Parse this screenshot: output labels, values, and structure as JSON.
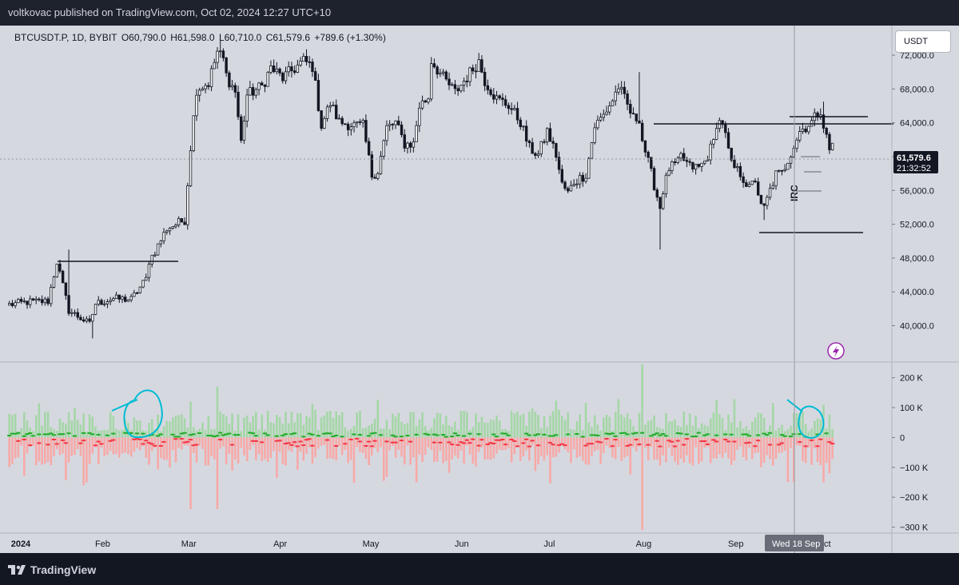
{
  "header": {
    "publisher_line": "voltkovac published on TradingView.com, Oct 02, 2024 12:27 UTC+10"
  },
  "legend": {
    "symbol": "BTCUSDT.P, 1D, BYBIT",
    "open": "O60,790.0",
    "high": "H61,598.0",
    "low": "L60,710.0",
    "close": "C61,579.6",
    "change": "+789.6 (+1.30%)"
  },
  "currency_button": "USDT",
  "price_badge": {
    "price": "61,579.6",
    "countdown": "21:32:52"
  },
  "crosshair_label": "Wed 18 Sep",
  "annotation_text": "IRC",
  "footer": {
    "brand": "TradingView"
  },
  "colors": {
    "up": "#089981",
    "down": "#f23645",
    "candle": "#131722",
    "circle": "#00bcd4",
    "bg": "#d6d8e0",
    "lightning": "#9c27b0"
  },
  "chart_data": [
    {
      "type": "candlestick",
      "title": "BTCUSDT.P, 1D, BYBIT",
      "price_axis": {
        "ticks": [
          "72,000.0",
          "68,000.0",
          "64,000.0",
          "60,000.0",
          "56,000.0",
          "52,000.0",
          "48,000.0",
          "44,000.0",
          "40,000.0"
        ],
        "tick_values": [
          72000,
          68000,
          64000,
          60000,
          56000,
          52000,
          48000,
          44000,
          40000
        ],
        "ylim": [
          35700,
          75500
        ]
      },
      "time_axis": {
        "ticks": [
          "2024",
          "Feb",
          "Mar",
          "Apr",
          "May",
          "Jun",
          "Jul",
          "Aug",
          "Sep",
          "Oct"
        ],
        "tick_days": [
          0,
          31,
          60,
          91,
          121,
          152,
          182,
          213,
          244,
          274
        ],
        "xlim": [
          -1,
          297
        ]
      },
      "close_path": [
        [
          0,
          42500
        ],
        [
          6,
          42800
        ],
        [
          13,
          42900
        ],
        [
          16,
          47600
        ],
        [
          20,
          41800
        ],
        [
          27,
          40200
        ],
        [
          29,
          42600
        ],
        [
          35,
          43200
        ],
        [
          41,
          43100
        ],
        [
          46,
          45500
        ],
        [
          47,
          47700
        ],
        [
          49,
          48800
        ],
        [
          53,
          51500
        ],
        [
          56,
          52000
        ],
        [
          59,
          52500
        ],
        [
          61,
          61200
        ],
        [
          63,
          68000
        ],
        [
          67,
          68700
        ],
        [
          70,
          72400
        ],
        [
          72,
          71500
        ],
        [
          73,
          69600
        ],
        [
          76,
          67700
        ],
        [
          78,
          61700
        ],
        [
          80,
          67300
        ],
        [
          85,
          68300
        ],
        [
          88,
          70500
        ],
        [
          92,
          69300
        ],
        [
          99,
          71300
        ],
        [
          102,
          70700
        ],
        [
          105,
          63700
        ],
        [
          108,
          66300
        ],
        [
          111,
          64100
        ],
        [
          116,
          63700
        ],
        [
          119,
          63600
        ],
        [
          122,
          57800
        ],
        [
          124,
          58300
        ],
        [
          127,
          63400
        ],
        [
          130,
          64000
        ],
        [
          133,
          61500
        ],
        [
          136,
          61500
        ],
        [
          138,
          66000
        ],
        [
          141,
          67000
        ],
        [
          142,
          71400
        ],
        [
          146,
          69300
        ],
        [
          150,
          67600
        ],
        [
          152,
          68500
        ],
        [
          158,
          71300
        ],
        [
          160,
          69000
        ],
        [
          164,
          66800
        ],
        [
          168,
          66100
        ],
        [
          172,
          64100
        ],
        [
          175,
          61000
        ],
        [
          178,
          60200
        ],
        [
          181,
          63000
        ],
        [
          184,
          60200
        ],
        [
          186,
          56700
        ],
        [
          188,
          55700
        ],
        [
          190,
          57000
        ],
        [
          194,
          57900
        ],
        [
          197,
          63600
        ],
        [
          200,
          64900
        ],
        [
          203,
          66700
        ],
        [
          205,
          68300
        ],
        [
          207,
          66800
        ],
        [
          210,
          64500
        ],
        [
          212,
          64600
        ],
        [
          213,
          62000
        ],
        [
          216,
          58000
        ],
        [
          218,
          55300
        ],
        [
          219,
          54000
        ],
        [
          220,
          56000
        ],
        [
          222,
          58600
        ],
        [
          225,
          59200
        ],
        [
          226,
          60000
        ],
        [
          229,
          58800
        ],
        [
          232,
          58700
        ],
        [
          234,
          59400
        ],
        [
          237,
          61700
        ],
        [
          238,
          64000
        ],
        [
          240,
          64100
        ],
        [
          243,
          59000
        ],
        [
          246,
          58000
        ],
        [
          249,
          56200
        ],
        [
          251,
          57300
        ],
        [
          253,
          54000
        ],
        [
          254,
          53900
        ],
        [
          256,
          56000
        ],
        [
          258,
          57900
        ],
        [
          260,
          58000
        ],
        [
          263,
          60500
        ],
        [
          266,
          63000
        ],
        [
          270,
          64100
        ],
        [
          273,
          65600
        ],
        [
          274,
          63700
        ],
        [
          276,
          60800
        ],
        [
          277,
          61579.6
        ]
      ],
      "highs": [
        {
          "day": 20,
          "value": 49000
        },
        {
          "day": 71,
          "value": 73700
        },
        {
          "day": 159,
          "value": 72000
        },
        {
          "day": 212,
          "value": 70000
        },
        {
          "day": 274,
          "value": 66500
        }
      ],
      "lows": [
        {
          "day": 28,
          "value": 38500
        },
        {
          "day": 219,
          "value": 49000
        },
        {
          "day": 254,
          "value": 52500
        }
      ],
      "last": {
        "day": 277,
        "open": 60790,
        "high": 61598,
        "low": 60710,
        "close": 61579.6
      }
    },
    {
      "type": "bar",
      "title": "Volume delta histogram",
      "axis_ticks": [
        "200 K",
        "100 K",
        "0",
        "−100 K",
        "−200 K",
        "−300 K"
      ],
      "tick_values": [
        200000,
        100000,
        0,
        -100000,
        -200000,
        -300000
      ],
      "ylim": [
        -320000,
        250000
      ],
      "notable_bars": [
        {
          "day": 213,
          "up": 245000,
          "down": -310000
        },
        {
          "day": 61,
          "up": 120000,
          "down": -240000
        },
        {
          "day": 70,
          "up": 170000,
          "down": -240000
        },
        {
          "day": 25,
          "up": 80000,
          "down": -160000
        },
        {
          "day": 274,
          "up": 110000,
          "down": -150000
        }
      ]
    }
  ]
}
